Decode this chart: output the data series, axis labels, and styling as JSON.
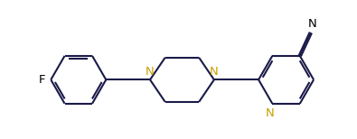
{
  "bg_color": "#ffffff",
  "bond_color": "#1a1a4a",
  "N_color": "#c8a000",
  "F_color": "#000000",
  "line_width": 1.5,
  "dbo": 0.055,
  "figsize": [
    3.95,
    1.54
  ],
  "dpi": 100,
  "xlim": [
    -4.6,
    3.4
  ],
  "ylim": [
    -1.25,
    1.35
  ]
}
